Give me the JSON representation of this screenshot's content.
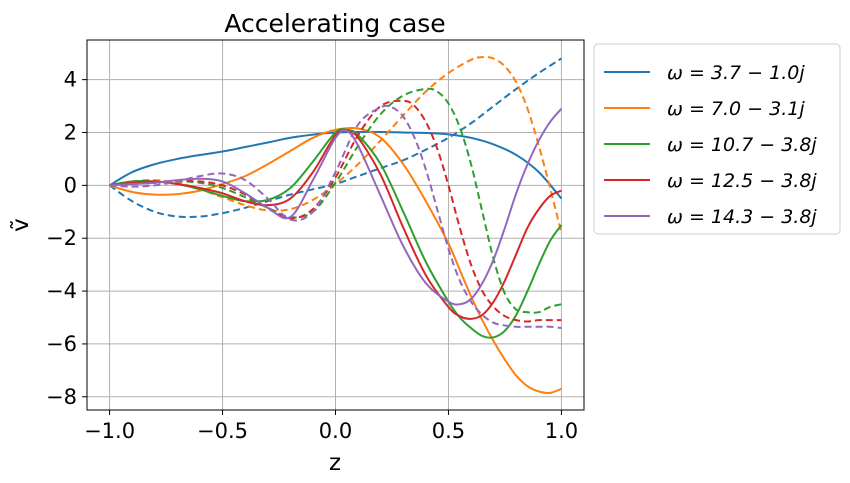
{
  "chart_data": {
    "type": "line",
    "title": "Accelerating case",
    "xlabel": "z",
    "ylabel": "ṽ",
    "xlim": [
      -1.1,
      1.1
    ],
    "ylim": [
      -8.5,
      5.5
    ],
    "xticks": [
      -1.0,
      -0.5,
      0.0,
      0.5,
      1.0
    ],
    "xtick_labels": [
      "−1.0",
      "−0.5",
      "0.0",
      "0.5",
      "1.0"
    ],
    "yticks": [
      -8,
      -6,
      -4,
      -2,
      0,
      2,
      4
    ],
    "ytick_labels": [
      "−8",
      "−6",
      "−4",
      "−2",
      "0",
      "2",
      "4"
    ],
    "grid": true,
    "legend_position": "outside-right-top",
    "series": [
      {
        "name": "ω = 3.7 − 1.0j",
        "color": "#1f77b4",
        "solid": {
          "x": [
            -1.0,
            -0.9,
            -0.8,
            -0.7,
            -0.6,
            -0.5,
            -0.4,
            -0.3,
            -0.2,
            -0.1,
            0.0,
            0.1,
            0.2,
            0.3,
            0.4,
            0.5,
            0.6,
            0.7,
            0.8,
            0.9,
            1.0
          ],
          "y": [
            0.0,
            0.5,
            0.8,
            1.0,
            1.15,
            1.28,
            1.45,
            1.62,
            1.8,
            1.92,
            2.0,
            2.02,
            2.02,
            2.0,
            1.98,
            1.93,
            1.8,
            1.55,
            1.15,
            0.5,
            -0.5
          ]
        },
        "dashed": {
          "x": [
            -1.0,
            -0.9,
            -0.8,
            -0.7,
            -0.6,
            -0.5,
            -0.4,
            -0.3,
            -0.2,
            -0.1,
            0.0,
            0.1,
            0.2,
            0.3,
            0.4,
            0.5,
            0.6,
            0.7,
            0.8,
            0.9,
            1.0
          ],
          "y": [
            0.0,
            -0.6,
            -1.0,
            -1.18,
            -1.18,
            -1.05,
            -0.85,
            -0.6,
            -0.35,
            -0.15,
            0.05,
            0.35,
            0.65,
            0.95,
            1.35,
            1.8,
            2.35,
            3.0,
            3.65,
            4.25,
            4.8
          ]
        }
      },
      {
        "name": "ω = 7.0 − 3.1j",
        "color": "#ff7f0e",
        "solid": {
          "x": [
            -1.0,
            -0.9,
            -0.8,
            -0.7,
            -0.6,
            -0.5,
            -0.4,
            -0.3,
            -0.2,
            -0.1,
            0.0,
            0.1,
            0.2,
            0.3,
            0.4,
            0.5,
            0.55,
            0.6,
            0.65,
            0.7,
            0.75,
            0.8,
            0.85,
            0.9,
            0.95,
            1.0
          ],
          "y": [
            0.0,
            -0.25,
            -0.35,
            -0.33,
            -0.2,
            0.05,
            0.35,
            0.8,
            1.3,
            1.8,
            2.1,
            2.15,
            1.8,
            0.8,
            -0.6,
            -2.2,
            -3.2,
            -4.2,
            -5.1,
            -5.9,
            -6.6,
            -7.2,
            -7.6,
            -7.8,
            -7.85,
            -7.7
          ]
        },
        "dashed": {
          "x": [
            -1.0,
            -0.9,
            -0.8,
            -0.7,
            -0.6,
            -0.5,
            -0.4,
            -0.3,
            -0.2,
            -0.1,
            0.0,
            0.1,
            0.2,
            0.3,
            0.4,
            0.5,
            0.6,
            0.65,
            0.7,
            0.75,
            0.8,
            0.85,
            0.9,
            0.95,
            1.0
          ],
          "y": [
            0.0,
            0.15,
            0.2,
            0.1,
            -0.15,
            -0.45,
            -0.75,
            -0.95,
            -0.9,
            -0.55,
            0.05,
            0.8,
            1.7,
            2.65,
            3.55,
            4.25,
            4.75,
            4.85,
            4.8,
            4.5,
            3.9,
            2.9,
            1.5,
            -0.1,
            -1.8
          ]
        }
      },
      {
        "name": "ω = 10.7 − 3.8j",
        "color": "#2ca02c",
        "solid": {
          "x": [
            -1.0,
            -0.9,
            -0.8,
            -0.7,
            -0.6,
            -0.5,
            -0.4,
            -0.3,
            -0.2,
            -0.1,
            0.0,
            0.05,
            0.1,
            0.2,
            0.3,
            0.4,
            0.5,
            0.55,
            0.6,
            0.65,
            0.7,
            0.75,
            0.8,
            0.85,
            0.9,
            0.95,
            1.0
          ],
          "y": [
            0.0,
            0.15,
            0.15,
            0.05,
            -0.15,
            -0.4,
            -0.6,
            -0.55,
            -0.1,
            0.9,
            2.0,
            2.1,
            1.9,
            0.8,
            -1.0,
            -2.9,
            -4.4,
            -5.0,
            -5.4,
            -5.7,
            -5.75,
            -5.5,
            -4.9,
            -4.0,
            -3.0,
            -2.1,
            -1.5
          ]
        },
        "dashed": {
          "x": [
            -1.0,
            -0.9,
            -0.8,
            -0.7,
            -0.6,
            -0.5,
            -0.4,
            -0.3,
            -0.2,
            -0.1,
            0.0,
            0.1,
            0.2,
            0.3,
            0.4,
            0.45,
            0.5,
            0.55,
            0.6,
            0.65,
            0.7,
            0.75,
            0.8,
            0.85,
            0.9,
            0.95,
            1.0
          ],
          "y": [
            0.0,
            0.05,
            0.1,
            0.15,
            0.1,
            -0.1,
            -0.45,
            -0.85,
            -1.2,
            -1.0,
            0.1,
            1.5,
            2.7,
            3.4,
            3.65,
            3.55,
            3.1,
            2.2,
            0.8,
            -1.0,
            -2.8,
            -4.1,
            -4.7,
            -4.8,
            -4.8,
            -4.6,
            -4.5
          ]
        }
      },
      {
        "name": "ω = 12.5 − 3.8j",
        "color": "#d62728",
        "solid": {
          "x": [
            -1.0,
            -0.9,
            -0.8,
            -0.7,
            -0.6,
            -0.5,
            -0.4,
            -0.3,
            -0.2,
            -0.1,
            0.0,
            0.05,
            0.1,
            0.2,
            0.3,
            0.4,
            0.5,
            0.55,
            0.6,
            0.65,
            0.7,
            0.75,
            0.8,
            0.85,
            0.9,
            0.95,
            1.0
          ],
          "y": [
            0.0,
            0.1,
            0.15,
            0.05,
            -0.1,
            -0.3,
            -0.6,
            -0.75,
            -0.5,
            0.5,
            1.9,
            2.05,
            1.8,
            0.4,
            -1.6,
            -3.4,
            -4.6,
            -4.95,
            -5.05,
            -4.9,
            -4.4,
            -3.6,
            -2.6,
            -1.6,
            -0.9,
            -0.4,
            -0.2
          ]
        },
        "dashed": {
          "x": [
            -1.0,
            -0.9,
            -0.8,
            -0.7,
            -0.6,
            -0.5,
            -0.4,
            -0.3,
            -0.2,
            -0.1,
            0.0,
            0.1,
            0.2,
            0.3,
            0.35,
            0.4,
            0.45,
            0.5,
            0.55,
            0.6,
            0.65,
            0.7,
            0.75,
            0.8,
            0.85,
            0.9,
            0.95,
            1.0
          ],
          "y": [
            0.0,
            0.05,
            0.1,
            0.15,
            0.15,
            0.0,
            -0.35,
            -0.85,
            -1.25,
            -0.9,
            0.3,
            1.9,
            3.0,
            3.2,
            3.0,
            2.4,
            1.4,
            0.0,
            -1.6,
            -3.0,
            -4.0,
            -4.6,
            -4.95,
            -5.1,
            -5.15,
            -5.1,
            -5.1,
            -5.1
          ]
        }
      },
      {
        "name": "ω = 14.3 − 3.8j",
        "color": "#9467bd",
        "solid": {
          "x": [
            -1.0,
            -0.9,
            -0.8,
            -0.7,
            -0.6,
            -0.5,
            -0.4,
            -0.3,
            -0.2,
            -0.1,
            0.0,
            0.05,
            0.1,
            0.2,
            0.3,
            0.4,
            0.5,
            0.55,
            0.6,
            0.65,
            0.7,
            0.75,
            0.8,
            0.85,
            0.9,
            0.95,
            1.0
          ],
          "y": [
            0.0,
            0.05,
            0.1,
            0.2,
            0.25,
            0.15,
            -0.3,
            -0.85,
            -1.2,
            0.2,
            1.8,
            2.05,
            1.5,
            -0.4,
            -2.3,
            -3.7,
            -4.4,
            -4.5,
            -4.3,
            -3.7,
            -2.8,
            -1.6,
            -0.3,
            0.8,
            1.7,
            2.4,
            2.9
          ]
        },
        "dashed": {
          "x": [
            -1.0,
            -0.9,
            -0.8,
            -0.7,
            -0.6,
            -0.5,
            -0.4,
            -0.3,
            -0.2,
            -0.1,
            0.0,
            0.1,
            0.2,
            0.25,
            0.3,
            0.35,
            0.4,
            0.45,
            0.5,
            0.55,
            0.6,
            0.65,
            0.7,
            0.75,
            0.8,
            0.85,
            0.9,
            0.95,
            1.0
          ],
          "y": [
            0.0,
            -0.05,
            0.0,
            0.15,
            0.35,
            0.45,
            0.2,
            -0.5,
            -1.3,
            -1.0,
            0.5,
            2.3,
            2.95,
            2.95,
            2.6,
            1.8,
            0.6,
            -0.9,
            -2.4,
            -3.6,
            -4.4,
            -4.9,
            -5.2,
            -5.3,
            -5.35,
            -5.35,
            -5.35,
            -5.35,
            -5.4
          ]
        }
      }
    ]
  }
}
